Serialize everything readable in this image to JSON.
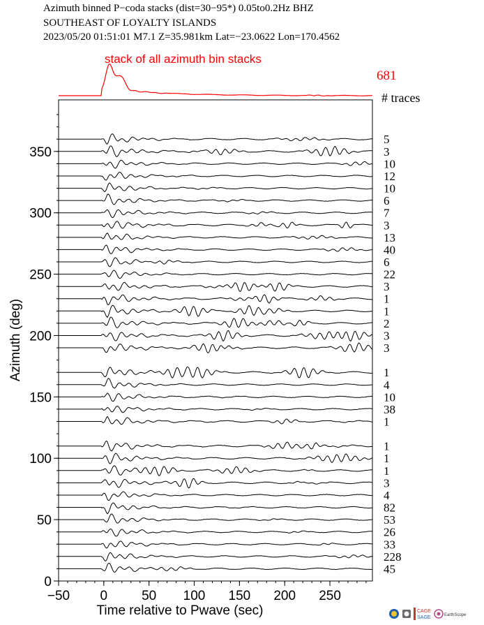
{
  "header": {
    "line1": "Azimuth binned P−coda stacks (dist=30−95*)  0.05to0.2Hz  BHZ",
    "line2": "SOUTHEAST OF LOYALTY ISLANDS",
    "line3": "2023/05/20  01:51:01  M7.1  Z=35.981km Lat=−23.0622 Lon=170.4562"
  },
  "colors": {
    "stack": "#ff0000",
    "trace": "#000000",
    "axis": "#000000"
  },
  "logos": [
    "nsf-logo-icon",
    "cc-badge-icon",
    "cage-sage-logo-icon",
    "earthscope-logo-icon"
  ],
  "logo_text": {
    "cage": "CAGE",
    "sage": "SAGE",
    "earthscope": "EarthScope"
  },
  "chart_data": {
    "type": "line",
    "title": "Azimuth binned P−coda stacks (dist=30−95*)  0.05to0.2Hz  BHZ",
    "xlabel": "Time relative to Pwave (sec)",
    "ylabel": "Azimuth (deg)",
    "xlim": [
      -50,
      297
    ],
    "ylim": [
      0,
      392
    ],
    "xticks": [
      -50,
      0,
      50,
      100,
      150,
      200,
      250
    ],
    "yticks": [
      0,
      50,
      100,
      150,
      200,
      250,
      300,
      350
    ],
    "grid": false,
    "stack": {
      "label": "stack of all azimuth bin stacks",
      "total_traces": "681",
      "count_header": "# traces"
    },
    "bins": [
      {
        "azimuth": 360,
        "traces": 5
      },
      {
        "azimuth": 350,
        "traces": 3
      },
      {
        "azimuth": 340,
        "traces": 10
      },
      {
        "azimuth": 330,
        "traces": 12
      },
      {
        "azimuth": 320,
        "traces": 10
      },
      {
        "azimuth": 310,
        "traces": 6
      },
      {
        "azimuth": 300,
        "traces": 7
      },
      {
        "azimuth": 290,
        "traces": 3
      },
      {
        "azimuth": 280,
        "traces": 13
      },
      {
        "azimuth": 270,
        "traces": 40
      },
      {
        "azimuth": 260,
        "traces": 6
      },
      {
        "azimuth": 250,
        "traces": 22
      },
      {
        "azimuth": 240,
        "traces": 3
      },
      {
        "azimuth": 230,
        "traces": 1
      },
      {
        "azimuth": 220,
        "traces": 1
      },
      {
        "azimuth": 210,
        "traces": 2
      },
      {
        "azimuth": 200,
        "traces": 3
      },
      {
        "azimuth": 190,
        "traces": 3
      },
      {
        "azimuth": 170,
        "traces": 1
      },
      {
        "azimuth": 160,
        "traces": 4
      },
      {
        "azimuth": 150,
        "traces": 10
      },
      {
        "azimuth": 140,
        "traces": 38
      },
      {
        "azimuth": 130,
        "traces": 1
      },
      {
        "azimuth": 110,
        "traces": 1
      },
      {
        "azimuth": 100,
        "traces": 1
      },
      {
        "azimuth": 90,
        "traces": 1
      },
      {
        "azimuth": 80,
        "traces": 3
      },
      {
        "azimuth": 70,
        "traces": 4
      },
      {
        "azimuth": 60,
        "traces": 82
      },
      {
        "azimuth": 50,
        "traces": 53
      },
      {
        "azimuth": 40,
        "traces": 26
      },
      {
        "azimuth": 30,
        "traces": 33
      },
      {
        "azimuth": 20,
        "traces": 228
      },
      {
        "azimuth": 10,
        "traces": 45
      }
    ]
  }
}
